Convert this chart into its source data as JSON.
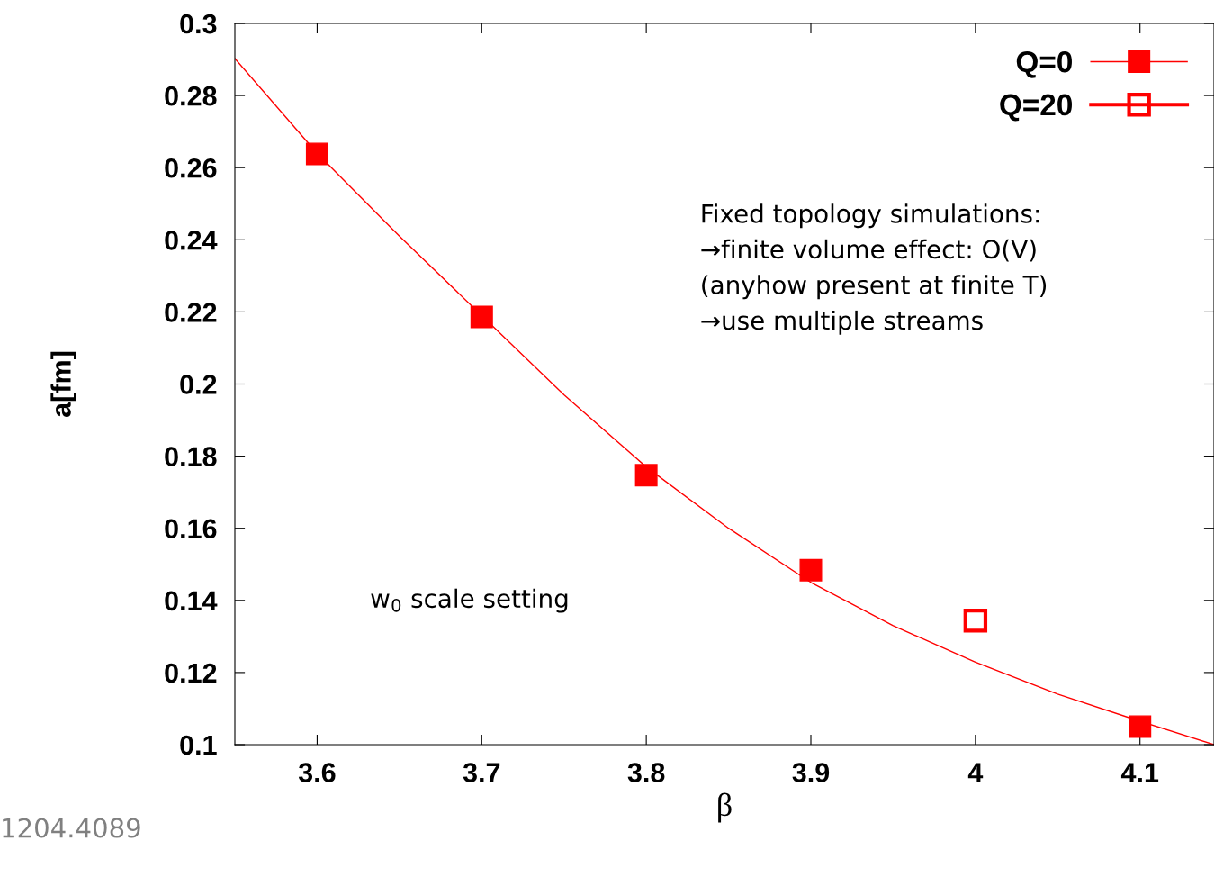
{
  "chart_data": {
    "type": "scatter",
    "xlabel": "β",
    "ylabel": "a[fm]",
    "xlim": [
      3.55,
      4.145
    ],
    "xticks": [
      3.6,
      3.7,
      3.8,
      3.9,
      4,
      4.1
    ],
    "ylim": [
      0.1,
      0.3
    ],
    "yticks": [
      0.1,
      0.12,
      0.14,
      0.16,
      0.18,
      0.2,
      0.22,
      0.24,
      0.26,
      0.28,
      0.3
    ],
    "grid": false,
    "legend": "top right",
    "series": [
      {
        "type": "line",
        "color": "#ff0000",
        "marker": "none",
        "line_style": "solid",
        "x": [
          3.55,
          3.6,
          3.65,
          3.7,
          3.75,
          3.8,
          3.85,
          3.9,
          3.95,
          4.0,
          4.05,
          4.1,
          4.145
        ],
        "values": [
          0.2903,
          0.264,
          0.241,
          0.219,
          0.197,
          0.177,
          0.16,
          0.145,
          0.133,
          0.1229,
          0.114,
          0.1065,
          0.1
        ]
      },
      {
        "name": "Q=0",
        "color": "#ff0000",
        "marker": "square",
        "x": [
          3.6,
          3.7,
          3.8,
          3.9,
          4.1
        ],
        "values": [
          0.2638,
          0.2186,
          0.1747,
          0.1484,
          0.105
        ]
      },
      {
        "name": "Q=20",
        "color": "#ff0000",
        "marker": "square open",
        "x": [
          4.0
        ],
        "values": [
          0.1344
        ]
      }
    ],
    "annotations": [
      {
        "text": "Fixed topology simulations:\n→finite volume effect: O(V)\n(anyhow present at finite T)\n→use multiple streams"
      },
      {
        "text": "w$_{0}$ scale setting"
      },
      {
        "text": "1204.4089"
      }
    ]
  }
}
